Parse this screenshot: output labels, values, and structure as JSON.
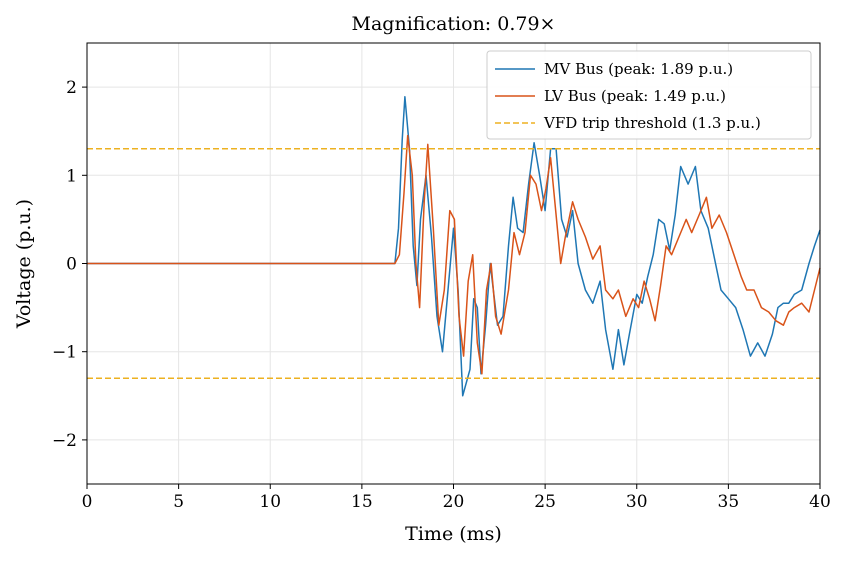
{
  "chart_data": {
    "type": "line",
    "title": "Magnification: 0.79×",
    "xlabel": "Time (ms)",
    "ylabel": "Voltage (p.u.)",
    "xlim": [
      0,
      40
    ],
    "ylim": [
      -2.5,
      2.5
    ],
    "xticks": [
      0,
      5,
      10,
      15,
      20,
      25,
      30,
      35,
      40
    ],
    "xtick_labels": [
      "0",
      "5",
      "10",
      "15",
      "20",
      "25",
      "30",
      "35",
      "40"
    ],
    "yticks": [
      -2,
      -1,
      0,
      1,
      2
    ],
    "ytick_labels": [
      "−2",
      "−1",
      "0",
      "1",
      "2"
    ],
    "grid": true,
    "legend_position": "top-right",
    "series": [
      {
        "name": "MV Bus (peak: 1.89 p.u.)",
        "color": "#1f77b4",
        "x": [
          0,
          16.8,
          17.0,
          17.2,
          17.35,
          17.6,
          17.8,
          18.0,
          18.2,
          18.5,
          18.8,
          19.1,
          19.4,
          19.7,
          20.0,
          20.25,
          20.5,
          20.9,
          21.1,
          21.3,
          21.5,
          21.75,
          22.0,
          22.4,
          22.7,
          23.0,
          23.25,
          23.5,
          23.8,
          24.1,
          24.4,
          24.7,
          25.0,
          25.3,
          25.6,
          25.9,
          26.2,
          26.5,
          26.8,
          27.2,
          27.6,
          28.0,
          28.3,
          28.7,
          29.0,
          29.3,
          29.6,
          30.0,
          30.3,
          30.6,
          30.9,
          31.2,
          31.5,
          31.8,
          32.1,
          32.4,
          32.8,
          33.2,
          33.5,
          33.9,
          34.2,
          34.6,
          35.0,
          35.4,
          35.8,
          36.2,
          36.6,
          37.0,
          37.4,
          37.7,
          38.0,
          38.3,
          38.6,
          39.0,
          39.4,
          39.7,
          40.0
        ],
        "y": [
          0,
          0,
          0.4,
          1.4,
          1.89,
          1.3,
          0.2,
          -0.25,
          0.5,
          1.0,
          0.3,
          -0.6,
          -1.0,
          -0.3,
          0.4,
          -0.3,
          -1.5,
          -1.2,
          -0.4,
          -0.5,
          -1.25,
          -0.7,
          0.0,
          -0.7,
          -0.6,
          0.2,
          0.75,
          0.4,
          0.35,
          0.9,
          1.37,
          1.0,
          0.6,
          1.3,
          1.3,
          0.5,
          0.3,
          0.6,
          0.0,
          -0.3,
          -0.45,
          -0.2,
          -0.75,
          -1.2,
          -0.75,
          -1.15,
          -0.8,
          -0.35,
          -0.45,
          -0.15,
          0.1,
          0.5,
          0.45,
          0.15,
          0.55,
          1.1,
          0.9,
          1.1,
          0.6,
          0.4,
          0.1,
          -0.3,
          -0.4,
          -0.5,
          -0.75,
          -1.05,
          -0.9,
          -1.05,
          -0.8,
          -0.5,
          -0.45,
          -0.45,
          -0.35,
          -0.3,
          0.0,
          0.2,
          0.38
        ]
      },
      {
        "name": "LV Bus (peak: 1.49 p.u.)",
        "color": "#d95319",
        "x": [
          0,
          16.8,
          17.05,
          17.3,
          17.5,
          17.75,
          17.95,
          18.15,
          18.4,
          18.6,
          18.9,
          19.2,
          19.5,
          19.8,
          20.05,
          20.3,
          20.55,
          20.8,
          21.05,
          21.3,
          21.55,
          21.8,
          22.05,
          22.3,
          22.6,
          23.0,
          23.3,
          23.6,
          23.9,
          24.2,
          24.5,
          24.8,
          25.05,
          25.3,
          25.6,
          25.85,
          26.1,
          26.5,
          26.8,
          27.2,
          27.6,
          28.0,
          28.3,
          28.7,
          29.0,
          29.4,
          29.8,
          30.1,
          30.4,
          30.7,
          31.0,
          31.3,
          31.6,
          31.9,
          32.3,
          32.7,
          33.0,
          33.4,
          33.8,
          34.1,
          34.5,
          34.9,
          35.3,
          35.7,
          36.0,
          36.4,
          36.8,
          37.2,
          37.6,
          38.0,
          38.3,
          38.6,
          39.0,
          39.4,
          39.7,
          40.0
        ],
        "y": [
          0,
          0,
          0.1,
          0.8,
          1.45,
          1.0,
          0.0,
          -0.5,
          0.7,
          1.35,
          0.4,
          -0.7,
          -0.3,
          0.6,
          0.5,
          -0.6,
          -1.05,
          -0.2,
          0.1,
          -0.9,
          -1.25,
          -0.3,
          0.0,
          -0.6,
          -0.8,
          -0.3,
          0.35,
          0.1,
          0.35,
          1.0,
          0.9,
          0.6,
          0.85,
          1.2,
          0.55,
          0.0,
          0.3,
          0.7,
          0.5,
          0.3,
          0.05,
          0.2,
          -0.3,
          -0.4,
          -0.3,
          -0.6,
          -0.4,
          -0.5,
          -0.2,
          -0.4,
          -0.65,
          -0.25,
          0.2,
          0.1,
          0.3,
          0.5,
          0.35,
          0.55,
          0.75,
          0.4,
          0.55,
          0.35,
          0.1,
          -0.15,
          -0.3,
          -0.3,
          -0.5,
          -0.55,
          -0.65,
          -0.7,
          -0.55,
          -0.5,
          -0.45,
          -0.55,
          -0.3,
          -0.05
        ]
      },
      {
        "name": "VFD trip threshold (1.3 p.u.)",
        "color": "#edb120",
        "style": "dashed",
        "x": [
          0,
          40
        ],
        "y": [
          1.3,
          1.3
        ]
      },
      {
        "name": "",
        "color": "#edb120",
        "style": "dashed",
        "x": [
          0,
          40
        ],
        "y": [
          -1.3,
          -1.3
        ]
      }
    ]
  }
}
